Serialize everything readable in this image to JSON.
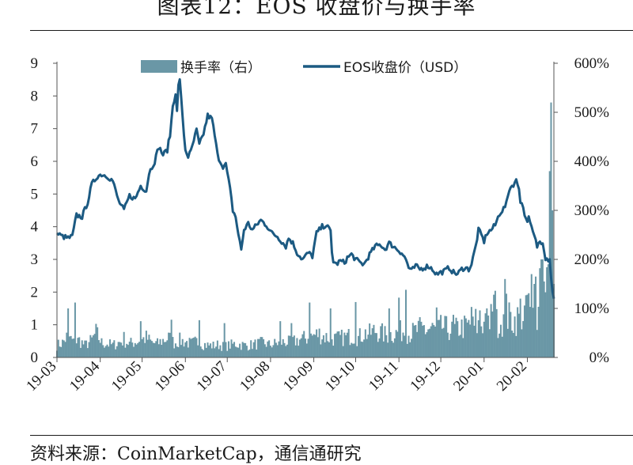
{
  "title": "图表12：EOS 收盘价与换手率",
  "source": "资料来源：CoinMarketCap，通信通研究",
  "chart_data": {
    "type": "bar+line",
    "x_tick_labels": [
      "19-03",
      "19-04",
      "19-05",
      "19-06",
      "19-07",
      "19-08",
      "19-09",
      "19-10",
      "19-11",
      "19-12",
      "20-01",
      "20-02"
    ],
    "left_axis": {
      "min": 0,
      "max": 9,
      "ticks": [
        0,
        1,
        2,
        3,
        4,
        5,
        6,
        7,
        8,
        9
      ],
      "unit": "USD"
    },
    "right_axis": {
      "min": 0,
      "max": 600,
      "ticks": [
        "0%",
        "100%",
        "200%",
        "300%",
        "400%",
        "500%",
        "600%"
      ]
    },
    "grid": false,
    "legend_position": "top",
    "series": [
      {
        "name": "换手率（右）",
        "type": "bar",
        "axis": "right",
        "color": "#6a97a6",
        "anchors": [
          [
            0,
            25
          ],
          [
            4,
            30
          ],
          [
            8,
            45
          ],
          [
            12,
            30
          ],
          [
            16,
            35
          ],
          [
            20,
            25
          ],
          [
            25,
            35
          ],
          [
            28,
            50
          ],
          [
            32,
            30
          ],
          [
            36,
            28
          ],
          [
            40,
            25
          ],
          [
            44,
            30
          ],
          [
            48,
            35
          ],
          [
            52,
            28
          ],
          [
            56,
            32
          ],
          [
            60,
            35
          ],
          [
            64,
            40
          ],
          [
            68,
            30
          ],
          [
            72,
            28
          ],
          [
            76,
            35
          ],
          [
            80,
            40
          ],
          [
            84,
            30
          ],
          [
            88,
            35
          ],
          [
            92,
            32
          ],
          [
            96,
            28
          ],
          [
            100,
            32
          ],
          [
            104,
            28
          ],
          [
            108,
            25
          ],
          [
            112,
            24
          ],
          [
            116,
            26
          ],
          [
            120,
            22
          ],
          [
            124,
            25
          ],
          [
            128,
            28
          ],
          [
            132,
            26
          ],
          [
            136,
            24
          ],
          [
            140,
            26
          ],
          [
            144,
            28
          ],
          [
            148,
            30
          ],
          [
            152,
            26
          ],
          [
            156,
            28
          ],
          [
            160,
            30
          ],
          [
            164,
            32
          ],
          [
            168,
            30
          ],
          [
            172,
            35
          ],
          [
            176,
            38
          ],
          [
            180,
            40
          ],
          [
            184,
            45
          ],
          [
            188,
            48
          ],
          [
            192,
            42
          ],
          [
            196,
            40
          ],
          [
            200,
            38
          ],
          [
            204,
            40
          ],
          [
            208,
            42
          ],
          [
            212,
            45
          ],
          [
            216,
            40
          ],
          [
            220,
            50
          ],
          [
            224,
            48
          ],
          [
            228,
            55
          ],
          [
            232,
            50
          ],
          [
            236,
            45
          ],
          [
            240,
            48
          ],
          [
            244,
            50
          ],
          [
            248,
            55
          ],
          [
            252,
            48
          ],
          [
            256,
            52
          ],
          [
            260,
            58
          ],
          [
            264,
            55
          ],
          [
            268,
            60
          ],
          [
            272,
            55
          ],
          [
            276,
            62
          ],
          [
            280,
            58
          ],
          [
            284,
            55
          ],
          [
            288,
            60
          ],
          [
            292,
            62
          ],
          [
            296,
            65
          ],
          [
            300,
            60
          ],
          [
            304,
            70
          ],
          [
            308,
            65
          ],
          [
            312,
            70
          ],
          [
            316,
            72
          ],
          [
            320,
            75
          ],
          [
            324,
            80
          ],
          [
            328,
            75
          ],
          [
            332,
            85
          ],
          [
            336,
            90
          ],
          [
            340,
            80
          ],
          [
            344,
            95
          ],
          [
            348,
            90
          ],
          [
            350,
            120
          ],
          [
            353,
            90
          ],
          [
            356,
            100
          ]
        ],
        "spikes": [
          [
            8,
            100
          ],
          [
            13,
            112
          ],
          [
            48,
            52
          ],
          [
            60,
            74
          ],
          [
            82,
            77
          ],
          [
            102,
            76
          ],
          [
            120,
            70
          ],
          [
            160,
            74
          ],
          [
            168,
            70
          ],
          [
            181,
            112
          ],
          [
            196,
            100
          ],
          [
            214,
            113
          ],
          [
            238,
            100
          ],
          [
            245,
            122
          ],
          [
            250,
            138
          ],
          [
            263,
            66
          ],
          [
            272,
            102
          ],
          [
            283,
            73
          ],
          [
            284,
            87
          ],
          [
            297,
            103
          ],
          [
            300,
            99
          ],
          [
            303,
            96
          ],
          [
            307,
            90
          ],
          [
            308,
            100
          ],
          [
            311,
            109
          ],
          [
            313,
            128
          ],
          [
            314,
            136
          ],
          [
            321,
            160
          ],
          [
            322,
            130
          ],
          [
            332,
            120
          ],
          [
            337,
            128
          ],
          [
            338,
            131
          ],
          [
            340,
            170
          ],
          [
            342,
            150
          ],
          [
            343,
            165
          ],
          [
            346,
            182
          ],
          [
            347,
            200
          ],
          [
            348,
            200
          ],
          [
            349,
            155
          ],
          [
            351,
            184
          ],
          [
            352,
            190
          ],
          [
            353,
            380
          ],
          [
            354,
            520
          ],
          [
            355,
            300
          ],
          [
            356,
            150
          ]
        ]
      },
      {
        "name": "EOS收盘价（USD）",
        "type": "line",
        "axis": "left",
        "color": "#1c5a82",
        "anchors": [
          [
            0,
            3.8
          ],
          [
            4,
            3.7
          ],
          [
            8,
            3.65
          ],
          [
            11,
            3.7
          ],
          [
            14,
            4.35
          ],
          [
            18,
            4.3
          ],
          [
            22,
            4.75
          ],
          [
            25,
            5.3
          ],
          [
            29,
            5.55
          ],
          [
            32,
            5.6
          ],
          [
            36,
            5.55
          ],
          [
            40,
            5.4
          ],
          [
            42,
            5.1
          ],
          [
            44,
            4.8
          ],
          [
            48,
            4.5
          ],
          [
            52,
            4.95
          ],
          [
            56,
            4.85
          ],
          [
            60,
            5.25
          ],
          [
            64,
            5.1
          ],
          [
            66,
            5.65
          ],
          [
            70,
            6.0
          ],
          [
            73,
            6.45
          ],
          [
            76,
            6.2
          ],
          [
            79,
            6.35
          ],
          [
            81,
            6.8
          ],
          [
            83,
            7.7
          ],
          [
            85,
            8.1
          ],
          [
            86,
            7.5
          ],
          [
            87,
            8.3
          ],
          [
            88,
            8.55
          ],
          [
            89,
            7.9
          ],
          [
            90,
            7.3
          ],
          [
            92,
            6.35
          ],
          [
            94,
            6.15
          ],
          [
            96,
            6.3
          ],
          [
            100,
            6.95
          ],
          [
            102,
            6.5
          ],
          [
            105,
            6.85
          ],
          [
            108,
            7.4
          ],
          [
            111,
            7.3
          ],
          [
            113,
            6.8
          ],
          [
            115,
            6.2
          ],
          [
            117,
            6.0
          ],
          [
            119,
            5.85
          ],
          [
            121,
            5.9
          ],
          [
            124,
            5.15
          ],
          [
            126,
            4.5
          ],
          [
            128,
            4.3
          ],
          [
            130,
            3.75
          ],
          [
            132,
            3.3
          ],
          [
            134,
            3.9
          ],
          [
            137,
            4.1
          ],
          [
            140,
            3.9
          ],
          [
            143,
            4.05
          ],
          [
            146,
            4.2
          ],
          [
            150,
            4.05
          ],
          [
            154,
            3.8
          ],
          [
            158,
            3.7
          ],
          [
            161,
            3.55
          ],
          [
            164,
            3.4
          ],
          [
            166,
            3.65
          ],
          [
            169,
            3.5
          ],
          [
            172,
            3.2
          ],
          [
            176,
            3.0
          ],
          [
            180,
            3.2
          ],
          [
            183,
            3.1
          ],
          [
            186,
            3.8
          ],
          [
            190,
            4.0
          ],
          [
            193,
            4.05
          ],
          [
            196,
            3.85
          ],
          [
            197,
            3.2
          ],
          [
            198,
            2.95
          ],
          [
            200,
            2.85
          ],
          [
            203,
            2.95
          ],
          [
            206,
            2.9
          ],
          [
            208,
            3.05
          ],
          [
            211,
            3.15
          ],
          [
            214,
            3.0
          ],
          [
            217,
            2.9
          ],
          [
            220,
            2.85
          ],
          [
            224,
            3.15
          ],
          [
            228,
            3.4
          ],
          [
            232,
            3.45
          ],
          [
            235,
            3.3
          ],
          [
            238,
            3.5
          ],
          [
            241,
            3.4
          ],
          [
            244,
            3.3
          ],
          [
            247,
            3.2
          ],
          [
            250,
            3.0
          ],
          [
            252,
            2.75
          ],
          [
            254,
            2.65
          ],
          [
            257,
            2.8
          ],
          [
            260,
            2.7
          ],
          [
            263,
            2.75
          ],
          [
            266,
            2.8
          ],
          [
            269,
            2.7
          ],
          [
            272,
            2.55
          ],
          [
            275,
            2.6
          ],
          [
            278,
            2.65
          ],
          [
            281,
            2.75
          ],
          [
            284,
            2.6
          ],
          [
            287,
            2.55
          ],
          [
            290,
            2.7
          ],
          [
            292,
            2.75
          ],
          [
            295,
            2.7
          ],
          [
            297,
            2.85
          ],
          [
            300,
            3.4
          ],
          [
            302,
            3.9
          ],
          [
            304,
            3.75
          ],
          [
            306,
            3.55
          ],
          [
            308,
            3.8
          ],
          [
            311,
            3.9
          ],
          [
            314,
            4.05
          ],
          [
            317,
            4.4
          ],
          [
            320,
            4.55
          ],
          [
            322,
            4.7
          ],
          [
            324,
            5.15
          ],
          [
            327,
            5.3
          ],
          [
            329,
            5.4
          ],
          [
            331,
            5.2
          ],
          [
            332,
            4.8
          ],
          [
            334,
            4.6
          ],
          [
            336,
            4.2
          ],
          [
            338,
            4.25
          ],
          [
            340,
            3.95
          ],
          [
            342,
            3.7
          ],
          [
            344,
            3.4
          ],
          [
            346,
            3.55
          ],
          [
            348,
            3.55
          ],
          [
            349,
            3.3
          ],
          [
            350,
            3.05
          ],
          [
            352,
            3.0
          ],
          [
            353,
            3.05
          ],
          [
            354,
            2.45
          ],
          [
            355,
            2.0
          ],
          [
            356,
            1.8
          ]
        ]
      }
    ]
  }
}
